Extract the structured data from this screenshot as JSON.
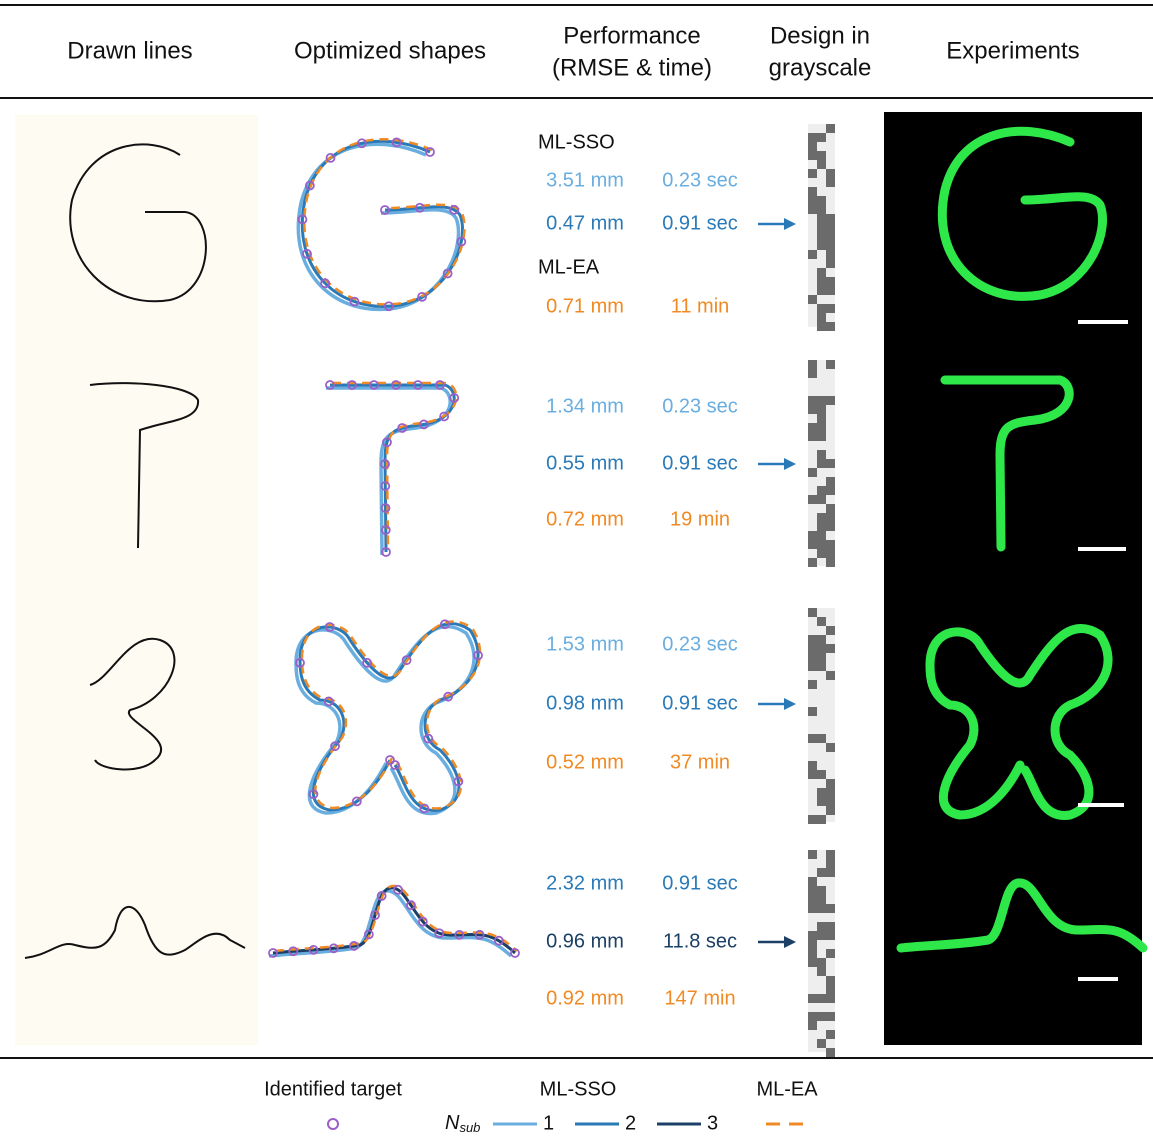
{
  "header": {
    "columns": [
      [
        "Drawn lines"
      ],
      [
        "Optimized shapes"
      ],
      [
        "Performance",
        "(RMSE & time)"
      ],
      [
        "Design in",
        "grayscale"
      ],
      [
        "Experiments"
      ]
    ]
  },
  "rows": [
    {
      "entries": [
        {
          "method": "ML-SSO"
        },
        {
          "rmse": "3.51 mm",
          "time": "0.23 sec",
          "color": "#6aaee0"
        },
        {
          "rmse": "0.47 mm",
          "time": "0.91 sec",
          "color": "#2a7ab8",
          "arrow": true
        },
        {
          "method": "ML-EA"
        },
        {
          "rmse": "0.71 mm",
          "time": "11 min",
          "color": "#f08a24"
        }
      ]
    },
    {
      "entries": [
        {
          "rmse": "1.34 mm",
          "time": "0.23 sec",
          "color": "#6aaee0"
        },
        {
          "rmse": "0.55 mm",
          "time": "0.91 sec",
          "color": "#2a7ab8",
          "arrow": true
        },
        {
          "rmse": "0.72 mm",
          "time": "19 min",
          "color": "#f08a24"
        }
      ]
    },
    {
      "entries": [
        {
          "rmse": "1.53 mm",
          "time": "0.23 sec",
          "color": "#6aaee0"
        },
        {
          "rmse": "0.98 mm",
          "time": "0.91 sec",
          "color": "#2a7ab8",
          "arrow": true
        },
        {
          "rmse": "0.52 mm",
          "time": "37 min",
          "color": "#f08a24"
        }
      ]
    },
    {
      "entries": [
        {
          "rmse": "2.32 mm",
          "time": "0.91 sec",
          "color": "#2a7ab8"
        },
        {
          "rmse": "0.96 mm",
          "time": "11.8 sec",
          "color": "#1b3f66",
          "arrow": true
        },
        {
          "rmse": "0.92 mm",
          "time": "147 min",
          "color": "#f08a24"
        }
      ]
    }
  ],
  "legend": {
    "target": {
      "label": "Identified target",
      "color": "#9b5fc8"
    },
    "ml_sso": {
      "label": "ML-SSO",
      "symbol": "N",
      "subscript": "sub",
      "levels": [
        {
          "label": "1",
          "color": "#6aaee0"
        },
        {
          "label": "2",
          "color": "#2a7ab8"
        },
        {
          "label": "3",
          "color": "#1b3f66"
        }
      ]
    },
    "ml_ea": {
      "label": "ML-EA",
      "color": "#f08a24"
    }
  }
}
